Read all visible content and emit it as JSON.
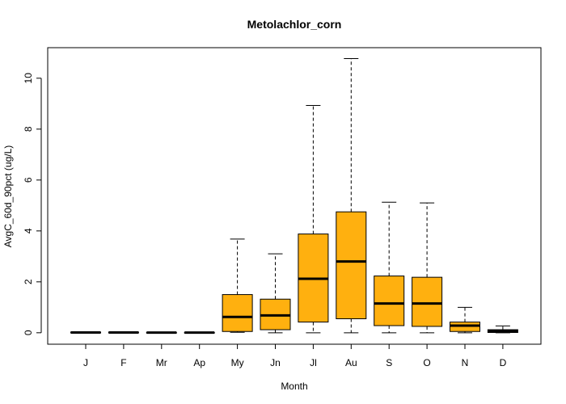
{
  "chart_data": {
    "type": "box",
    "title": "Metolachlor_corn",
    "xlabel": "Month",
    "ylabel": "AvgC_60d_90pct (ug/L)",
    "ylim": [
      -0.45,
      11.2
    ],
    "yticks": [
      0,
      2,
      4,
      6,
      8,
      10
    ],
    "grid": false,
    "legend": "none",
    "box_color": "#FFB00F",
    "categories": [
      "J",
      "F",
      "Mr",
      "Ap",
      "My",
      "Jn",
      "Jl",
      "Au",
      "S",
      "O",
      "N",
      "D"
    ],
    "boxes": [
      {
        "min": 0,
        "q1": 0,
        "median": 0.01,
        "q3": 0.02,
        "max": 0.04
      },
      {
        "min": 0,
        "q1": 0,
        "median": 0.01,
        "q3": 0.02,
        "max": 0.04
      },
      {
        "min": 0,
        "q1": 0,
        "median": 0.005,
        "q3": 0.01,
        "max": 0.02
      },
      {
        "min": 0,
        "q1": 0,
        "median": 0.005,
        "q3": 0.01,
        "max": 0.02
      },
      {
        "min": 0.02,
        "q1": 0.05,
        "median": 0.62,
        "q3": 1.5,
        "max": 3.68
      },
      {
        "min": 0,
        "q1": 0.12,
        "median": 0.68,
        "q3": 1.32,
        "max": 3.1
      },
      {
        "min": 0,
        "q1": 0.42,
        "median": 2.12,
        "q3": 3.88,
        "max": 8.93
      },
      {
        "min": 0,
        "q1": 0.55,
        "median": 2.8,
        "q3": 4.75,
        "max": 10.77
      },
      {
        "min": 0,
        "q1": 0.28,
        "median": 1.15,
        "q3": 2.23,
        "max": 5.13
      },
      {
        "min": 0,
        "q1": 0.25,
        "median": 1.15,
        "q3": 2.18,
        "max": 5.1
      },
      {
        "min": 0,
        "q1": 0.05,
        "median": 0.28,
        "q3": 0.42,
        "max": 1.0
      },
      {
        "min": 0,
        "q1": 0.01,
        "median": 0.07,
        "q3": 0.12,
        "max": 0.27
      }
    ]
  }
}
